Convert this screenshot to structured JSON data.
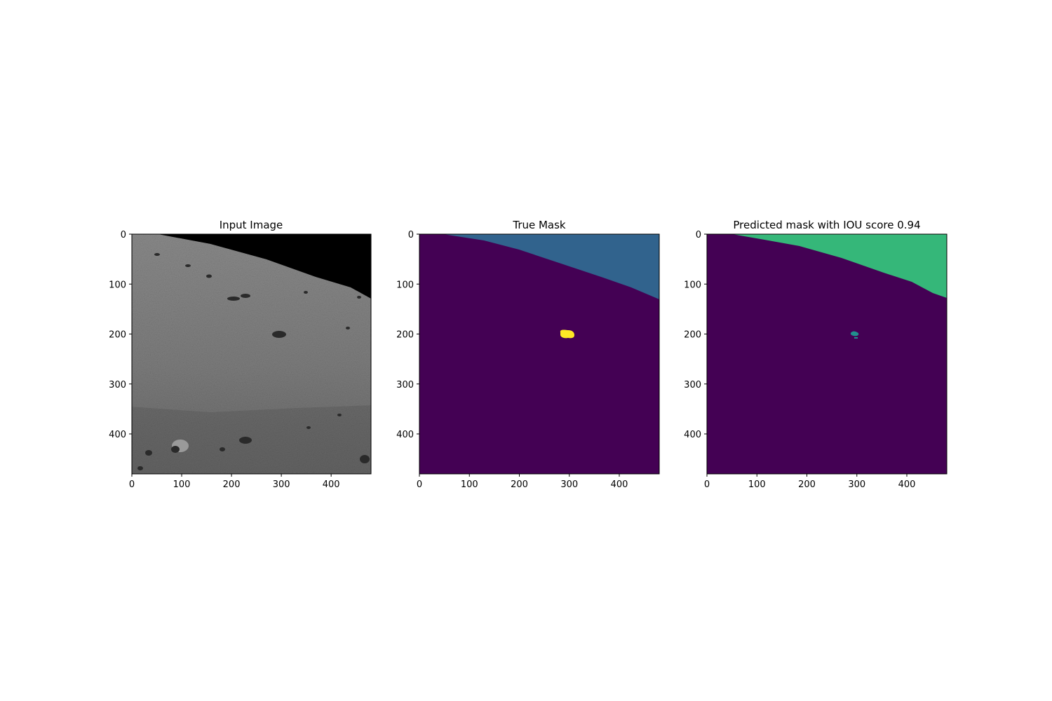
{
  "figure": {
    "image_extent": [
      0,
      480
    ],
    "panels": [
      {
        "title": "Input Image",
        "kind": "photo",
        "x_ticks": [
          "0",
          "100",
          "200",
          "300",
          "400"
        ],
        "y_ticks": [
          "0",
          "100",
          "200",
          "300",
          "400"
        ]
      },
      {
        "title": "True Mask",
        "kind": "mask",
        "x_ticks": [
          "0",
          "100",
          "200",
          "300",
          "400"
        ],
        "y_ticks": [
          "0",
          "100",
          "200",
          "300",
          "400"
        ],
        "colors": {
          "background": "#440154",
          "sky": "#31638d",
          "rock": "#fde725"
        }
      },
      {
        "title": "Predicted mask with IOU score 0.94",
        "kind": "mask",
        "x_ticks": [
          "0",
          "100",
          "200",
          "300",
          "400"
        ],
        "y_ticks": [
          "0",
          "100",
          "200",
          "300",
          "400"
        ],
        "colors": {
          "background": "#440154",
          "sky": "#35b779",
          "rock": "#21908d"
        }
      }
    ]
  }
}
